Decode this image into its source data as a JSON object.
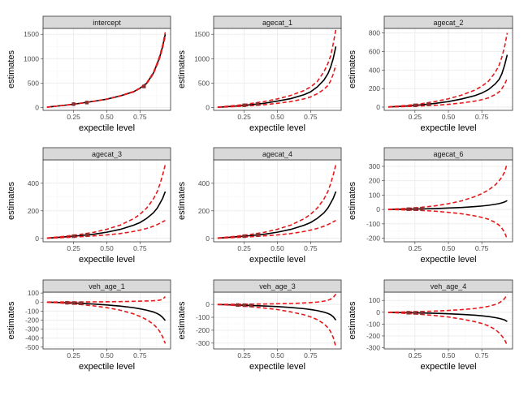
{
  "figure": {
    "background": "#ffffff"
  },
  "style": {
    "strip_fill": "#d9d9d9",
    "strip_border": "#333333",
    "panel_border": "#333333",
    "grid_major": "#ebebeb",
    "grid_minor": "#f5f5f5",
    "estimate_color": "#000000",
    "interval_color": "#e41a1c"
  },
  "chart_data": [
    {
      "type": "line",
      "title": "intercept",
      "xlabel": "expectile level",
      "ylabel": "estimates",
      "xlim": [
        0.02,
        0.98
      ],
      "ylim": [
        -60,
        1620
      ],
      "xticks": [
        0.25,
        0.5,
        0.75
      ],
      "xticklabels": [
        "0.25",
        "0.50",
        "0.75"
      ],
      "yticks": [
        0,
        500,
        1000,
        1500
      ],
      "yticklabels": [
        "0",
        "500",
        "1000",
        "1500"
      ],
      "x": [
        0.05,
        0.1,
        0.2,
        0.3,
        0.4,
        0.5,
        0.6,
        0.7,
        0.75,
        0.8,
        0.85,
        0.88,
        0.9,
        0.92,
        0.94
      ],
      "series": [
        {
          "role": "estimate",
          "style": "solid",
          "values": [
            5,
            20,
            50,
            85,
            125,
            170,
            235,
            320,
            395,
            495,
            700,
            900,
            1050,
            1250,
            1500
          ]
        },
        {
          "role": "upper",
          "style": "dashed",
          "values": [
            5,
            21,
            51,
            86,
            126,
            172,
            238,
            325,
            400,
            505,
            715,
            920,
            1075,
            1280,
            1540
          ]
        },
        {
          "role": "lower",
          "style": "dashed",
          "values": [
            5,
            19,
            49,
            84,
            124,
            168,
            232,
            315,
            390,
            485,
            685,
            880,
            1025,
            1220,
            1460
          ]
        }
      ],
      "markers": {
        "x": [
          0.25,
          0.35,
          0.78
        ],
        "values": [
          68,
          100,
          430
        ]
      }
    },
    {
      "type": "line",
      "title": "agecat_1",
      "xlabel": "expectile level",
      "ylabel": "estimates",
      "xlim": [
        0.02,
        0.98
      ],
      "ylim": [
        -60,
        1620
      ],
      "xticks": [
        0.25,
        0.5,
        0.75
      ],
      "xticklabels": [
        "0.25",
        "0.50",
        "0.75"
      ],
      "yticks": [
        0,
        500,
        1000,
        1500
      ],
      "yticklabels": [
        "0",
        "500",
        "1000",
        "1500"
      ],
      "x": [
        0.05,
        0.1,
        0.2,
        0.3,
        0.4,
        0.5,
        0.6,
        0.7,
        0.75,
        0.8,
        0.85,
        0.88,
        0.9,
        0.92,
        0.94
      ],
      "series": [
        {
          "role": "estimate",
          "style": "solid",
          "values": [
            5,
            12,
            30,
            55,
            85,
            130,
            180,
            260,
            320,
            420,
            560,
            690,
            820,
            1000,
            1250
          ]
        },
        {
          "role": "upper",
          "style": "dashed",
          "values": [
            6,
            18,
            45,
            80,
            120,
            175,
            245,
            345,
            420,
            530,
            730,
            900,
            1050,
            1300,
            1600
          ]
        },
        {
          "role": "lower",
          "style": "dashed",
          "values": [
            4,
            8,
            20,
            35,
            55,
            85,
            120,
            175,
            215,
            280,
            370,
            450,
            540,
            680,
            870
          ]
        }
      ],
      "markers": {
        "x": [
          0.25,
          0.35
        ],
        "values": [
          44,
          70
        ]
      }
    },
    {
      "type": "line",
      "title": "agecat_2",
      "xlabel": "expectile level",
      "ylabel": "estimates",
      "xlim": [
        0.02,
        0.98
      ],
      "ylim": [
        -35,
        850
      ],
      "xticks": [
        0.25,
        0.5,
        0.75
      ],
      "xticklabels": [
        "0.25",
        "0.50",
        "0.75"
      ],
      "yticks": [
        0,
        200,
        400,
        600,
        800
      ],
      "yticklabels": [
        "0",
        "200",
        "400",
        "600",
        "800"
      ],
      "x": [
        0.05,
        0.1,
        0.2,
        0.3,
        0.4,
        0.5,
        0.6,
        0.7,
        0.75,
        0.8,
        0.85,
        0.88,
        0.9,
        0.92,
        0.94
      ],
      "series": [
        {
          "role": "estimate",
          "style": "solid",
          "values": [
            2,
            5,
            13,
            25,
            40,
            60,
            88,
            125,
            152,
            190,
            250,
            300,
            360,
            450,
            565
          ]
        },
        {
          "role": "upper",
          "style": "dashed",
          "values": [
            3,
            8,
            20,
            37,
            60,
            90,
            130,
            185,
            225,
            280,
            375,
            455,
            540,
            650,
            800
          ]
        },
        {
          "role": "lower",
          "style": "dashed",
          "values": [
            1,
            3,
            7,
            13,
            20,
            30,
            45,
            65,
            80,
            100,
            135,
            165,
            200,
            245,
            310
          ]
        }
      ],
      "markers": {
        "x": [
          0.25,
          0.35
        ],
        "values": [
          19,
          32
        ]
      }
    },
    {
      "type": "line",
      "title": "agecat_3",
      "xlabel": "expectile level",
      "ylabel": "estimates",
      "xlim": [
        0.02,
        0.98
      ],
      "ylim": [
        -25,
        570
      ],
      "xticks": [
        0.25,
        0.5,
        0.75
      ],
      "xticklabels": [
        "0.25",
        "0.50",
        "0.75"
      ],
      "yticks": [
        0,
        200,
        400
      ],
      "yticklabels": [
        "0",
        "200",
        "400"
      ],
      "x": [
        0.05,
        0.1,
        0.2,
        0.3,
        0.4,
        0.5,
        0.6,
        0.7,
        0.75,
        0.8,
        0.85,
        0.88,
        0.9,
        0.92,
        0.94
      ],
      "series": [
        {
          "role": "estimate",
          "style": "solid",
          "values": [
            2,
            5,
            12,
            20,
            30,
            45,
            65,
            95,
            115,
            145,
            185,
            220,
            255,
            290,
            340
          ]
        },
        {
          "role": "upper",
          "style": "dashed",
          "values": [
            3,
            7,
            17,
            29,
            44,
            66,
            96,
            142,
            175,
            220,
            285,
            340,
            395,
            460,
            535
          ]
        },
        {
          "role": "lower",
          "style": "dashed",
          "values": [
            1,
            3,
            7,
            12,
            18,
            25,
            35,
            50,
            60,
            72,
            88,
            100,
            110,
            120,
            130
          ]
        }
      ],
      "markers": {
        "x": [
          0.25,
          0.35
        ],
        "values": [
          16,
          25
        ]
      }
    },
    {
      "type": "line",
      "title": "agecat_4",
      "xlabel": "expectile level",
      "ylabel": "estimates",
      "xlim": [
        0.02,
        0.98
      ],
      "ylim": [
        -25,
        570
      ],
      "xticks": [
        0.25,
        0.5,
        0.75
      ],
      "xticklabels": [
        "0.25",
        "0.50",
        "0.75"
      ],
      "yticks": [
        0,
        200,
        400
      ],
      "yticklabels": [
        "0",
        "200",
        "400"
      ],
      "x": [
        0.05,
        0.1,
        0.2,
        0.3,
        0.4,
        0.5,
        0.6,
        0.7,
        0.75,
        0.8,
        0.85,
        0.88,
        0.9,
        0.92,
        0.94
      ],
      "series": [
        {
          "role": "estimate",
          "style": "solid",
          "values": [
            2,
            5,
            12,
            20,
            30,
            45,
            65,
            95,
            115,
            145,
            185,
            220,
            255,
            290,
            340
          ]
        },
        {
          "role": "upper",
          "style": "dashed",
          "values": [
            3,
            7,
            17,
            29,
            44,
            66,
            96,
            142,
            175,
            220,
            285,
            340,
            395,
            460,
            535
          ]
        },
        {
          "role": "lower",
          "style": "dashed",
          "values": [
            1,
            3,
            7,
            12,
            18,
            25,
            35,
            50,
            60,
            72,
            88,
            100,
            110,
            120,
            130
          ]
        }
      ],
      "markers": {
        "x": [
          0.25,
          0.35
        ],
        "values": [
          16,
          25
        ]
      }
    },
    {
      "type": "line",
      "title": "agecat_6",
      "xlabel": "expectile level",
      "ylabel": "estimates",
      "xlim": [
        0.02,
        0.98
      ],
      "ylim": [
        -225,
        345
      ],
      "xticks": [
        0.25,
        0.5,
        0.75
      ],
      "xticklabels": [
        "0.25",
        "0.50",
        "0.75"
      ],
      "yticks": [
        -200,
        -100,
        0,
        100,
        200,
        300
      ],
      "yticklabels": [
        "-200",
        "-100",
        "0",
        "100",
        "200",
        "300"
      ],
      "x": [
        0.05,
        0.1,
        0.2,
        0.3,
        0.4,
        0.5,
        0.6,
        0.7,
        0.75,
        0.8,
        0.85,
        0.88,
        0.9,
        0.92,
        0.94
      ],
      "series": [
        {
          "role": "estimate",
          "style": "solid",
          "values": [
            0,
            1,
            2,
            4,
            6,
            10,
            14,
            20,
            24,
            29,
            36,
            41,
            46,
            52,
            62
          ]
        },
        {
          "role": "upper",
          "style": "dashed",
          "values": [
            1,
            3,
            8,
            15,
            25,
            40,
            60,
            90,
            110,
            135,
            170,
            200,
            225,
            260,
            320
          ]
        },
        {
          "role": "lower",
          "style": "dashed",
          "values": [
            -1,
            -1,
            -4,
            -7,
            -12,
            -20,
            -30,
            -45,
            -55,
            -68,
            -90,
            -110,
            -130,
            -160,
            -205
          ]
        }
      ],
      "markers": {
        "x": [
          0.2,
          0.25,
          0.3
        ],
        "values": [
          2,
          3,
          4
        ]
      }
    },
    {
      "type": "line",
      "title": "veh_age_1",
      "xlabel": "expectile level",
      "ylabel": "estimates",
      "xlim": [
        0.02,
        0.98
      ],
      "ylim": [
        -520,
        110
      ],
      "xticks": [
        0.25,
        0.5,
        0.75
      ],
      "xticklabels": [
        "0.25",
        "0.50",
        "0.75"
      ],
      "yticks": [
        -500,
        -400,
        -300,
        -200,
        -100,
        0,
        100
      ],
      "yticklabels": [
        "-500",
        "-400",
        "-300",
        "-200",
        "-100",
        "0",
        "100"
      ],
      "x": [
        0.05,
        0.1,
        0.2,
        0.3,
        0.4,
        0.5,
        0.6,
        0.7,
        0.75,
        0.8,
        0.85,
        0.88,
        0.9,
        0.92,
        0.94
      ],
      "series": [
        {
          "role": "estimate",
          "style": "solid",
          "values": [
            -1,
            -3,
            -8,
            -14,
            -22,
            -32,
            -45,
            -62,
            -75,
            -90,
            -110,
            -128,
            -145,
            -170,
            -205
          ]
        },
        {
          "role": "upper",
          "style": "dashed",
          "values": [
            0,
            0,
            0,
            1,
            2,
            3,
            5,
            8,
            10,
            12,
            15,
            18,
            22,
            30,
            60
          ]
        },
        {
          "role": "lower",
          "style": "dashed",
          "values": [
            -2,
            -5,
            -15,
            -27,
            -42,
            -62,
            -90,
            -130,
            -160,
            -195,
            -245,
            -290,
            -330,
            -385,
            -460
          ]
        }
      ],
      "markers": {
        "x": [
          0.2,
          0.25,
          0.3
        ],
        "values": [
          -8,
          -11,
          -14
        ]
      }
    },
    {
      "type": "line",
      "title": "veh_age_3",
      "xlabel": "expectile level",
      "ylabel": "estimates",
      "xlim": [
        0.02,
        0.98
      ],
      "ylim": [
        -345,
        95
      ],
      "xticks": [
        0.25,
        0.5,
        0.75
      ],
      "xticklabels": [
        "0.25",
        "0.50",
        "0.75"
      ],
      "yticks": [
        -300,
        -200,
        -100,
        0
      ],
      "yticklabels": [
        "-300",
        "-200",
        "-100",
        "0"
      ],
      "x": [
        0.05,
        0.1,
        0.2,
        0.3,
        0.4,
        0.5,
        0.6,
        0.7,
        0.75,
        0.8,
        0.85,
        0.88,
        0.9,
        0.92,
        0.94
      ],
      "series": [
        {
          "role": "estimate",
          "style": "solid",
          "values": [
            -1,
            -2,
            -5,
            -8,
            -12,
            -17,
            -24,
            -33,
            -40,
            -48,
            -60,
            -70,
            -80,
            -95,
            -122
          ]
        },
        {
          "role": "upper",
          "style": "dashed",
          "values": [
            0,
            0,
            1,
            2,
            3,
            5,
            7,
            11,
            14,
            18,
            25,
            32,
            40,
            52,
            80
          ]
        },
        {
          "role": "lower",
          "style": "dashed",
          "values": [
            -1,
            -3,
            -10,
            -18,
            -28,
            -40,
            -58,
            -80,
            -97,
            -118,
            -150,
            -180,
            -210,
            -255,
            -330
          ]
        }
      ],
      "markers": {
        "x": [
          0.2,
          0.25,
          0.3
        ],
        "values": [
          -5,
          -6,
          -8
        ]
      }
    },
    {
      "type": "line",
      "title": "veh_age_4",
      "xlabel": "expectile level",
      "ylabel": "estimates",
      "xlim": [
        0.02,
        0.98
      ],
      "ylim": [
        -310,
        170
      ],
      "xticks": [
        0.25,
        0.5,
        0.75
      ],
      "xticklabels": [
        "0.25",
        "0.50",
        "0.75"
      ],
      "yticks": [
        -300,
        -200,
        -100,
        0,
        100
      ],
      "yticklabels": [
        "-300",
        "-200",
        "-100",
        "0",
        "100"
      ],
      "x": [
        0.05,
        0.1,
        0.2,
        0.3,
        0.4,
        0.5,
        0.6,
        0.7,
        0.75,
        0.8,
        0.85,
        0.88,
        0.9,
        0.92,
        0.94
      ],
      "series": [
        {
          "role": "estimate",
          "style": "solid",
          "values": [
            -1,
            -2,
            -4,
            -6,
            -9,
            -13,
            -18,
            -25,
            -30,
            -36,
            -45,
            -52,
            -58,
            -65,
            -78
          ]
        },
        {
          "role": "upper",
          "style": "dashed",
          "values": [
            0,
            1,
            3,
            6,
            10,
            15,
            22,
            32,
            40,
            50,
            65,
            80,
            95,
            115,
            150
          ]
        },
        {
          "role": "lower",
          "style": "dashed",
          "values": [
            -1,
            -4,
            -11,
            -18,
            -28,
            -40,
            -58,
            -80,
            -95,
            -115,
            -145,
            -175,
            -200,
            -230,
            -280
          ]
        }
      ],
      "markers": {
        "x": [
          0.2,
          0.25,
          0.3
        ],
        "values": [
          -4,
          -5,
          -6
        ]
      }
    }
  ]
}
